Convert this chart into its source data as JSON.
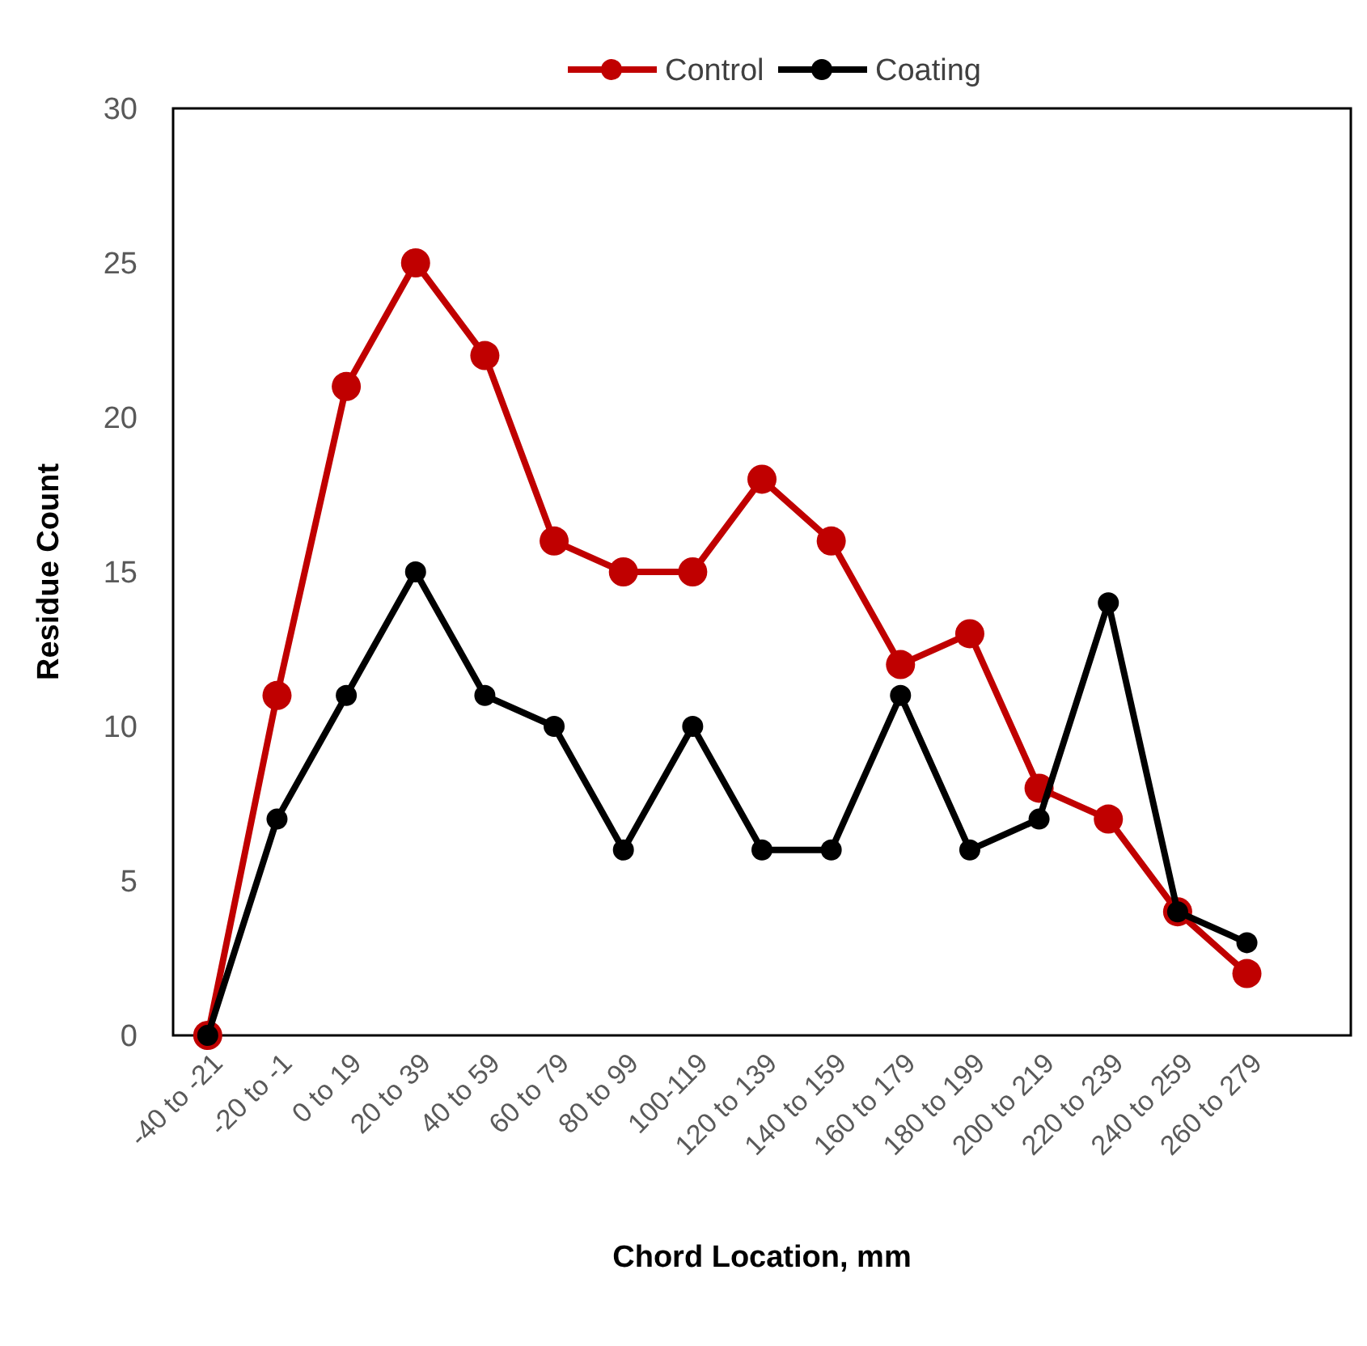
{
  "chart_data": {
    "type": "line",
    "xlabel": "Chord Location, mm",
    "ylabel": "Residue Count",
    "categories": [
      "-40 to -21",
      "-20 to -1",
      "0 to 19",
      "20 to 39",
      "40 to 59",
      "60 to 79",
      "80 to 99",
      "100-119",
      "120 to 139",
      "140 to 159",
      "160 to 179",
      "180 to 199",
      "200 to 219",
      "220 to 239",
      "240 to 259",
      "260 to 279",
      null
    ],
    "series": [
      {
        "name": "Control",
        "color": "#c00000",
        "values": [
          0,
          11,
          21,
          25,
          22,
          16,
          15,
          15,
          18,
          16,
          12,
          13,
          8,
          7,
          4,
          2,
          null
        ]
      },
      {
        "name": "Coating",
        "color": "#000000",
        "values": [
          0,
          7,
          11,
          15,
          11,
          10,
          6,
          10,
          6,
          6,
          11,
          6,
          7,
          14,
          4,
          3,
          null
        ]
      }
    ],
    "ylim": [
      0,
      30
    ],
    "yticks": [
      0,
      5,
      10,
      15,
      20,
      25,
      30
    ],
    "grid": false,
    "legend": "top",
    "marker": "circle",
    "line_style": "solid"
  }
}
